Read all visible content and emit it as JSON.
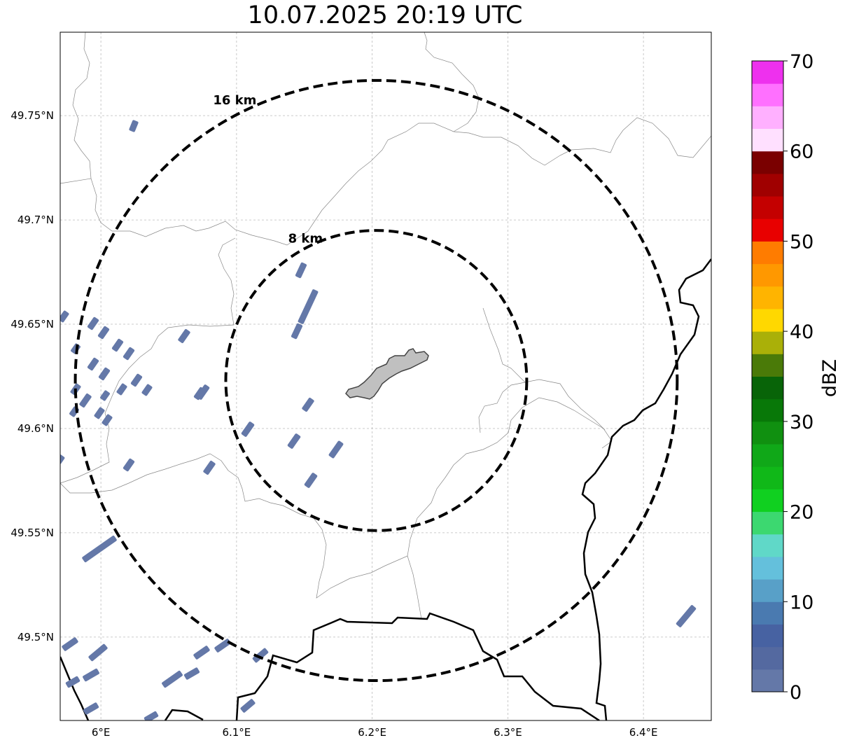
{
  "title": "10.07.2025 20:19 UTC",
  "map": {
    "lon_range": [
      5.97,
      6.45
    ],
    "lat_range": [
      49.46,
      49.79
    ],
    "center": {
      "lon": 6.203,
      "lat": 49.623
    },
    "lon_ticks": [
      {
        "value": 6.0,
        "label": "6°E"
      },
      {
        "value": 6.1,
        "label": "6.1°E"
      },
      {
        "value": 6.2,
        "label": "6.2°E"
      },
      {
        "value": 6.3,
        "label": "6.3°E"
      },
      {
        "value": 6.4,
        "label": "6.4°E"
      }
    ],
    "lat_ticks": [
      {
        "value": 49.5,
        "label": "49.5°N"
      },
      {
        "value": 49.55,
        "label": "49.55°N"
      },
      {
        "value": 49.6,
        "label": "49.6°N"
      },
      {
        "value": 49.65,
        "label": "49.65°N"
      },
      {
        "value": 49.7,
        "label": "49.7°N"
      },
      {
        "value": 49.75,
        "label": "49.75°N"
      }
    ],
    "gridlines": true,
    "rings": [
      {
        "radius_km": 8,
        "label": "8 km"
      },
      {
        "radius_km": 16,
        "label": "16 km"
      }
    ],
    "echo_color": "#6478a8",
    "city_fill": "#c0c0c0",
    "border_color": "#000000",
    "region_line_color": "#888888"
  },
  "colorbar": {
    "label": "dBZ",
    "min": 0,
    "max": 70,
    "step": 2.5,
    "tick_labels": [
      "0",
      "10",
      "20",
      "30",
      "40",
      "50",
      "60",
      "70"
    ],
    "colors": [
      "#6478a8",
      "#5469a0",
      "#4762a2",
      "#4a7ab0",
      "#58a0c8",
      "#64c0dc",
      "#60d8c8",
      "#3cd870",
      "#10d020",
      "#10b818",
      "#10a818",
      "#109010",
      "#087808",
      "#086408",
      "#4a7a08",
      "#aab008",
      "#ffd800",
      "#ffb400",
      "#ff9800",
      "#ff7c00",
      "#e80000",
      "#c40000",
      "#a00000",
      "#7a0000",
      "#ffe0ff",
      "#ffb0ff",
      "#ff70ff",
      "#ee30ee"
    ]
  }
}
